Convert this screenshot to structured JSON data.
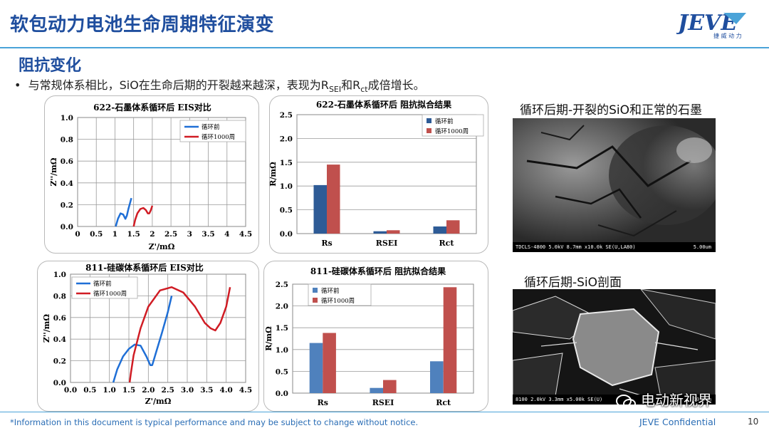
{
  "header": {
    "title": "软包动力电池生命周期特征演变",
    "logo_text": "JEVE",
    "logo_subtext": "捷 威 动 力"
  },
  "section": {
    "heading": "阻抗变化",
    "bullet_prefix": "与常规体系相比，SiO在生命后期的开裂越来越深，表现为R",
    "bullet_sub1": "SEI",
    "bullet_mid": "和R",
    "bullet_sub2": "ct",
    "bullet_suffix": "成倍增长。"
  },
  "photos": {
    "top_label": "循环后期-开裂的SiO和正常的石墨",
    "top_footer": "TDCLS-4800 5.0kV 8.7mm x10.0k SE(U,LA80)",
    "top_scale": "5.00um",
    "bottom_label": "循环后期-SiO剖面",
    "bottom_footer": "8100 2.0kV 3.3mm x5.00k SE(U)",
    "bottom_scale": "10.0um"
  },
  "watermark": "电动新视界",
  "footer": {
    "note": "*Information in this document is typical performance and may be subject to change without notice.",
    "confidential": "JEVE Confidential",
    "page": "10"
  },
  "colors": {
    "title_blue": "#1f4e9e",
    "rule_blue": "#4aa3d8",
    "before_blue": "#1f6fd6",
    "after_red": "#d01c24",
    "bar_blue": "#2e5b96",
    "bar_red": "#c0504d",
    "bar_blue_light": "#4f81bd"
  },
  "chart_data": [
    {
      "type": "line",
      "title": "622-石墨体系循环后 EIS对比",
      "xlabel": "Z'/mΩ",
      "ylabel": "Z''/mΩ",
      "xlim": [
        0,
        4.5
      ],
      "ylim": [
        0,
        1.0
      ],
      "xticks": [
        "0",
        "0.5",
        "1",
        "1.5",
        "2",
        "2.5",
        "3",
        "3.5",
        "4",
        "4.5"
      ],
      "yticks": [
        "0.0",
        "0.2",
        "0.4",
        "0.6",
        "0.8",
        "1.0"
      ],
      "legend_position": "top-right",
      "series": [
        {
          "name": "循环前",
          "color": "#1f6fd6",
          "x": [
            1.02,
            1.08,
            1.15,
            1.22,
            1.28,
            1.32,
            1.36,
            1.4,
            1.44
          ],
          "y": [
            0.0,
            0.07,
            0.12,
            0.11,
            0.07,
            0.1,
            0.16,
            0.21,
            0.26
          ]
        },
        {
          "name": "循环1000周",
          "color": "#d01c24",
          "x": [
            1.5,
            1.54,
            1.6,
            1.68,
            1.76,
            1.83,
            1.88,
            1.92,
            1.96,
            2.0
          ],
          "y": [
            0.0,
            0.06,
            0.12,
            0.16,
            0.17,
            0.15,
            0.12,
            0.12,
            0.15,
            0.19
          ]
        }
      ]
    },
    {
      "type": "bar",
      "title": "622-石墨体系循环后  阻抗拟合结果",
      "ylabel": "R/mΩ",
      "ylim": [
        0,
        2.5
      ],
      "yticks": [
        "0.0",
        "0.5",
        "1.0",
        "1.5",
        "2.0",
        "2.5"
      ],
      "categories": [
        "Rs",
        "RSEI",
        "Rct"
      ],
      "legend_position": "top-right",
      "series": [
        {
          "name": "循环前",
          "color": "#2e5b96",
          "values": [
            1.02,
            0.05,
            0.15
          ]
        },
        {
          "name": "循环1000周",
          "color": "#c0504d",
          "values": [
            1.45,
            0.07,
            0.28
          ]
        }
      ]
    },
    {
      "type": "line",
      "title": "811-硅碳体系循环后  EIS对比",
      "xlabel": "Z'/mΩ",
      "ylabel": "Z''/mΩ",
      "xlim": [
        0,
        4.5
      ],
      "ylim": [
        0,
        1.0
      ],
      "xticks": [
        "0.0",
        "0.5",
        "1.0",
        "1.5",
        "2.0",
        "2.5",
        "3.0",
        "3.5",
        "4.0",
        "4.5"
      ],
      "yticks": [
        "0.0",
        "0.2",
        "0.4",
        "0.6",
        "0.8",
        "1.0"
      ],
      "legend_position": "top-left",
      "series": [
        {
          "name": "循环前",
          "color": "#1f6fd6",
          "x": [
            1.1,
            1.2,
            1.35,
            1.5,
            1.65,
            1.8,
            1.95,
            2.05,
            2.1,
            2.2,
            2.35,
            2.5,
            2.6
          ],
          "y": [
            0.0,
            0.12,
            0.24,
            0.31,
            0.35,
            0.34,
            0.24,
            0.16,
            0.16,
            0.28,
            0.46,
            0.65,
            0.8
          ]
        },
        {
          "name": "循环1000周",
          "color": "#d01c24",
          "x": [
            1.52,
            1.55,
            1.62,
            1.8,
            2.0,
            2.3,
            2.6,
            2.9,
            3.2,
            3.45,
            3.6,
            3.72,
            3.85,
            4.0,
            4.1
          ],
          "y": [
            0.0,
            0.08,
            0.25,
            0.5,
            0.7,
            0.85,
            0.88,
            0.83,
            0.7,
            0.55,
            0.5,
            0.48,
            0.55,
            0.7,
            0.88
          ]
        }
      ]
    },
    {
      "type": "bar",
      "title": "811-硅碳体系循环后  阻抗拟合结果",
      "ylabel": "R/mΩ",
      "ylim": [
        0,
        2.5
      ],
      "yticks": [
        "0.0",
        "0.5",
        "1.0",
        "1.5",
        "2.0",
        "2.5"
      ],
      "categories": [
        "Rs",
        "RSEI",
        "Rct"
      ],
      "legend_position": "top-left",
      "series": [
        {
          "name": "循环前",
          "color": "#4f81bd",
          "values": [
            1.15,
            0.12,
            0.73
          ]
        },
        {
          "name": "循环1000周",
          "color": "#c0504d",
          "values": [
            1.38,
            0.3,
            2.43
          ]
        }
      ]
    }
  ]
}
